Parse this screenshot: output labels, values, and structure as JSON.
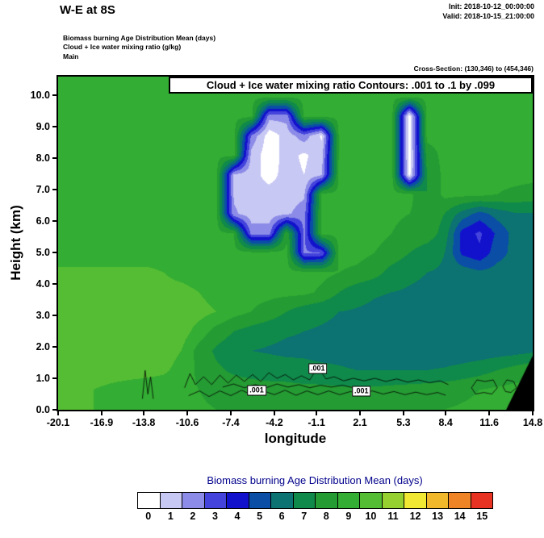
{
  "header": {
    "title": "W-E at 8S",
    "init_line": "Init: 2018-10-12_00:00:00",
    "valid_line": "Valid: 2018-10-15_21:00:00",
    "field_lines": [
      "Biomass burning Age Distribution Mean (days)",
      "Cloud + Ice water mixing ratio (g/kg)",
      "Main"
    ],
    "cross_section": "Cross-Section: (130,346) to (454,346)"
  },
  "chart_data": {
    "type": "filled-contour",
    "title": "Cloud + Ice water mixing ratio Contours: .001 to .1 by .099",
    "xlabel": "longitude",
    "ylabel": "Height (km)",
    "field_name": "Biomass burning Age Distribution Mean (days)",
    "x_range": [
      -20.1,
      14.8
    ],
    "y_range": [
      0,
      10.6
    ],
    "x_ticks": [
      -20.1,
      -16.9,
      -13.8,
      -10.6,
      -7.4,
      -4.2,
      -1.1,
      2.1,
      5.3,
      8.4,
      11.6,
      14.8
    ],
    "x_tick_labels": [
      "-20.1",
      "-16.9",
      "-13.8",
      "-10.6",
      "-7.4",
      "-4.2",
      "-1.1",
      "2.1",
      "5.3",
      "8.4",
      "11.6",
      "14.8"
    ],
    "y_ticks": [
      0,
      1,
      2,
      3,
      4,
      5,
      6,
      7,
      8,
      9,
      10
    ],
    "y_tick_labels": [
      "0.0",
      "1.0",
      "2.0",
      "3.0",
      "4.0",
      "5.0",
      "6.0",
      "7.0",
      "8.0",
      "9.0",
      "10.0"
    ],
    "grid": {
      "nx": 28,
      "ny": 18,
      "note": "approx. age (days) field, rows top (10.6 km) to bottom (0 km), cols -20.1 to 14.8 lon",
      "values_top_to_bottom": [
        [
          9.3,
          9.3,
          9.3,
          9.3,
          9.3,
          9.3,
          9.3,
          9.3,
          9.3,
          9.3,
          9.3,
          9.3,
          9.3,
          9.3,
          9.3,
          9.3,
          9.3,
          9.3,
          9.3,
          9.3,
          9.3,
          9.3,
          9.3,
          9.3,
          9.3,
          9.3,
          9.3,
          9.3
        ],
        [
          9.3,
          9.3,
          9.3,
          9.3,
          9.3,
          9.3,
          9.3,
          9.3,
          9.3,
          9.3,
          9.3,
          9.3,
          9.3,
          9.3,
          9.3,
          9.3,
          9.3,
          9.3,
          9.3,
          9.3,
          9.3,
          9.3,
          9.3,
          9.3,
          9.3,
          9.3,
          9.3,
          9.3
        ],
        [
          9.3,
          9.3,
          9.3,
          9.3,
          9.3,
          9.3,
          9.3,
          9.3,
          9.3,
          9.3,
          9.3,
          9.3,
          2.4,
          2.4,
          9.3,
          9.3,
          9.3,
          9.3,
          9.3,
          9.3,
          0.4,
          9.3,
          9.3,
          9.3,
          9.3,
          9.3,
          9.3,
          9.3
        ],
        [
          9.3,
          9.3,
          9.3,
          9.3,
          9.3,
          9.3,
          9.3,
          9.3,
          9.3,
          9.3,
          9.3,
          2.8,
          0.4,
          1.4,
          2.6,
          0.8,
          9.3,
          9.3,
          9.3,
          9.3,
          0.4,
          9.3,
          9.3,
          9.3,
          9.3,
          9.3,
          9.3,
          9.3
        ],
        [
          9.3,
          9.3,
          9.3,
          9.3,
          9.3,
          9.3,
          9.3,
          9.3,
          9.3,
          9.3,
          9.3,
          1.6,
          0.4,
          1.4,
          0.8,
          1.6,
          9.3,
          9.3,
          9.3,
          9.3,
          0.4,
          8.5,
          9.3,
          9.3,
          9.3,
          9.3,
          9.3,
          9.3
        ],
        [
          9.3,
          9.3,
          9.3,
          9.3,
          9.3,
          9.3,
          9.3,
          9.3,
          9.3,
          9.3,
          1.8,
          1.4,
          0.6,
          1.4,
          1.0,
          1.8,
          9.3,
          9.3,
          9.3,
          9.3,
          0.6,
          8.0,
          9.3,
          9.3,
          9.3,
          9.3,
          9.3,
          9.3
        ],
        [
          9.3,
          9.3,
          9.3,
          9.3,
          9.3,
          9.3,
          9.3,
          9.3,
          9.3,
          9.3,
          1.8,
          1.4,
          1.4,
          1.4,
          1.8,
          9.3,
          9.3,
          9.3,
          9.3,
          9.3,
          9.3,
          8.0,
          9.3,
          9.3,
          9.3,
          9.0,
          8.8,
          8.6
        ],
        [
          9.3,
          9.3,
          9.3,
          9.3,
          9.3,
          9.3,
          9.3,
          9.3,
          9.3,
          9.3,
          2.2,
          1.4,
          1.4,
          1.8,
          2.6,
          9.3,
          9.3,
          9.3,
          9.3,
          9.1,
          9.0,
          8.6,
          8.0,
          6.6,
          5.6,
          6.4,
          6.9,
          6.9
        ],
        [
          9.3,
          9.3,
          9.3,
          9.3,
          9.3,
          9.3,
          9.3,
          9.3,
          9.3,
          9.3,
          9.0,
          2.6,
          2.6,
          8.8,
          2.8,
          9.3,
          9.3,
          9.3,
          9.3,
          9.0,
          8.8,
          8.6,
          7.6,
          4.6,
          3.8,
          5.2,
          6.4,
          6.6
        ],
        [
          9.3,
          9.3,
          9.3,
          9.3,
          9.3,
          9.3,
          9.3,
          9.3,
          9.3,
          9.3,
          9.3,
          9.3,
          9.3,
          9.3,
          2.8,
          3.0,
          9.3,
          9.3,
          9.0,
          8.6,
          8.0,
          7.4,
          7.0,
          4.8,
          4.2,
          5.6,
          6.3,
          6.5
        ],
        [
          10.3,
          10.3,
          10.3,
          10.3,
          10.3,
          10.3,
          10.0,
          9.6,
          9.3,
          9.3,
          9.3,
          9.3,
          9.3,
          9.3,
          9.3,
          9.3,
          9.0,
          8.8,
          8.4,
          7.6,
          7.2,
          7.0,
          6.9,
          6.6,
          6.2,
          6.4,
          6.5,
          6.6
        ],
        [
          10.4,
          10.4,
          10.4,
          10.4,
          10.4,
          10.4,
          10.4,
          10.4,
          10.0,
          9.5,
          9.3,
          9.3,
          9.3,
          9.3,
          9.3,
          8.8,
          8.0,
          7.4,
          7.1,
          7.0,
          6.9,
          6.8,
          6.7,
          6.5,
          6.3,
          6.2,
          6.3,
          6.8
        ],
        [
          10.4,
          10.4,
          10.4,
          10.4,
          10.4,
          10.4,
          10.4,
          10.4,
          10.4,
          10.0,
          9.4,
          9.0,
          8.6,
          8.0,
          7.4,
          7.2,
          7.0,
          6.9,
          6.8,
          6.7,
          6.6,
          6.6,
          6.5,
          6.4,
          6.3,
          6.2,
          6.3,
          6.7
        ],
        [
          10.5,
          10.5,
          10.5,
          10.5,
          10.5,
          10.5,
          10.5,
          10.5,
          9.6,
          8.6,
          8.0,
          7.6,
          7.3,
          7.1,
          7.0,
          6.9,
          6.8,
          6.7,
          6.6,
          6.5,
          6.4,
          6.4,
          6.3,
          6.3,
          6.2,
          6.2,
          6.3,
          6.6
        ],
        [
          10.5,
          10.5,
          10.5,
          10.5,
          10.5,
          10.5,
          10.5,
          10.0,
          8.6,
          7.8,
          7.3,
          7.0,
          6.9,
          6.8,
          6.8,
          6.7,
          6.7,
          6.6,
          6.5,
          6.5,
          6.4,
          6.4,
          6.4,
          6.4,
          6.4,
          6.5,
          6.6,
          6.8
        ],
        [
          10.4,
          10.4,
          10.4,
          10.4,
          10.4,
          10.4,
          10.2,
          9.6,
          8.8,
          8.2,
          7.8,
          7.6,
          7.5,
          7.4,
          7.3,
          7.2,
          7.1,
          7.0,
          7.0,
          7.0,
          7.0,
          7.0,
          7.1,
          7.3,
          7.6,
          8.0,
          8.4,
          8.8
        ],
        [
          10.2,
          10.2,
          10.0,
          9.8,
          9.6,
          9.4,
          9.3,
          9.2,
          9.0,
          8.8,
          8.6,
          8.5,
          8.4,
          8.4,
          8.3,
          8.3,
          8.2,
          8.2,
          8.2,
          8.3,
          8.4,
          8.5,
          8.6,
          8.8,
          9.0,
          9.2,
          9.3,
          9.3
        ],
        [
          10.2,
          10.2,
          10.0,
          9.8,
          9.6,
          9.4,
          9.3,
          9.2,
          9.1,
          9.0,
          8.9,
          8.8,
          8.8,
          8.7,
          8.7,
          8.6,
          8.6,
          8.6,
          8.6,
          8.7,
          8.8,
          8.9,
          9.0,
          9.1,
          9.2,
          9.3,
          9.3,
          9.3
        ]
      ]
    },
    "terrain_polygon": [
      [
        12.85,
        0
      ],
      [
        14.8,
        1.72
      ],
      [
        14.8,
        0
      ]
    ],
    "contour_lines": [
      [
        [
          -10.8,
          0.7
        ],
        [
          -10.4,
          1.15
        ],
        [
          -10.0,
          0.8
        ],
        [
          -9.4,
          1.05
        ],
        [
          -8.8,
          0.8
        ],
        [
          -8.2,
          1.1
        ],
        [
          -7.6,
          0.85
        ],
        [
          -7.0,
          1.1
        ],
        [
          -6.4,
          0.9
        ],
        [
          -5.8,
          1.12
        ],
        [
          -5.2,
          0.9
        ],
        [
          -4.6,
          1.18
        ],
        [
          -4.0,
          1.0
        ],
        [
          -3.4,
          1.12
        ],
        [
          -2.8,
          0.95
        ],
        [
          -2.2,
          1.08
        ],
        [
          -1.6,
          0.95
        ],
        [
          -1.0,
          1.35
        ],
        [
          -0.4,
          0.98
        ],
        [
          0.2,
          1.05
        ],
        [
          0.9,
          0.92
        ],
        [
          1.6,
          1.0
        ],
        [
          2.4,
          0.92
        ],
        [
          3.2,
          1.0
        ],
        [
          4.0,
          0.9
        ],
        [
          4.8,
          0.98
        ],
        [
          5.6,
          0.88
        ],
        [
          6.4,
          0.95
        ],
        [
          7.2,
          0.86
        ],
        [
          8.0,
          0.92
        ],
        [
          8.6,
          0.8
        ]
      ],
      [
        [
          -10.5,
          0.45
        ],
        [
          -9.7,
          0.6
        ],
        [
          -9.0,
          0.42
        ],
        [
          -8.2,
          0.6
        ],
        [
          -7.4,
          0.45
        ],
        [
          -6.6,
          0.62
        ],
        [
          -5.8,
          0.46
        ],
        [
          -5.0,
          0.6
        ],
        [
          -4.2,
          0.48
        ],
        [
          -3.4,
          0.62
        ],
        [
          -2.6,
          0.46
        ],
        [
          -1.8,
          0.6
        ],
        [
          -1.0,
          0.48
        ],
        [
          -0.2,
          0.6
        ],
        [
          0.6,
          0.48
        ],
        [
          1.4,
          0.58
        ],
        [
          2.2,
          0.5
        ],
        [
          3.0,
          0.6
        ],
        [
          3.8,
          0.5
        ],
        [
          4.6,
          0.58
        ],
        [
          5.4,
          0.48
        ],
        [
          6.2,
          0.56
        ],
        [
          7.0,
          0.48
        ],
        [
          7.8,
          0.55
        ],
        [
          8.4,
          0.46
        ]
      ],
      [
        [
          -8.0,
          0.72
        ],
        [
          -7.2,
          0.82
        ],
        [
          -6.4,
          0.7
        ],
        [
          -5.6,
          0.8
        ],
        [
          -4.8,
          0.7
        ],
        [
          -4.0,
          0.82
        ],
        [
          -3.2,
          0.72
        ],
        [
          -2.4,
          0.8
        ],
        [
          -1.6,
          0.7
        ],
        [
          -0.8,
          0.78
        ],
        [
          0.0,
          0.72
        ],
        [
          0.8,
          0.78
        ],
        [
          1.6,
          0.7
        ]
      ],
      [
        [
          -13.9,
          0.35
        ],
        [
          -13.7,
          1.25
        ],
        [
          -13.5,
          0.5
        ],
        [
          -13.3,
          1.05
        ],
        [
          -13.1,
          0.35
        ]
      ],
      [
        [
          10.3,
          0.7
        ],
        [
          10.7,
          0.95
        ],
        [
          11.3,
          0.9
        ],
        [
          11.9,
          0.95
        ],
        [
          12.2,
          0.7
        ],
        [
          11.8,
          0.5
        ],
        [
          11.2,
          0.55
        ],
        [
          10.6,
          0.5
        ],
        [
          10.3,
          0.7
        ]
      ],
      [
        [
          12.6,
          0.75
        ],
        [
          12.9,
          0.95
        ],
        [
          13.4,
          0.9
        ],
        [
          13.6,
          0.7
        ],
        [
          13.2,
          0.55
        ],
        [
          12.8,
          0.58
        ],
        [
          12.6,
          0.75
        ]
      ]
    ],
    "contour_labels": [
      {
        "text": ".001",
        "x": -1.0,
        "y": 1.3
      },
      {
        "text": ".001",
        "x": -5.5,
        "y": 0.62
      },
      {
        "text": ".001",
        "x": 2.2,
        "y": 0.6
      }
    ],
    "colorbar": {
      "title": "Biomass burning Age Distribution Mean  (days)",
      "tick_labels": [
        "0",
        "1",
        "2",
        "3",
        "4",
        "5",
        "6",
        "7",
        "8",
        "9",
        "10",
        "11",
        "12",
        "13",
        "14",
        "15"
      ],
      "colors": [
        "#ffffff",
        "#c8c8f4",
        "#8c8ce8",
        "#4444dc",
        "#1212cc",
        "#0a4ea6",
        "#0c7272",
        "#108a4a",
        "#259b33",
        "#33ad33",
        "#55bd33",
        "#95cf30",
        "#f0e832",
        "#f2b82c",
        "#ef8426",
        "#e93322"
      ]
    }
  }
}
